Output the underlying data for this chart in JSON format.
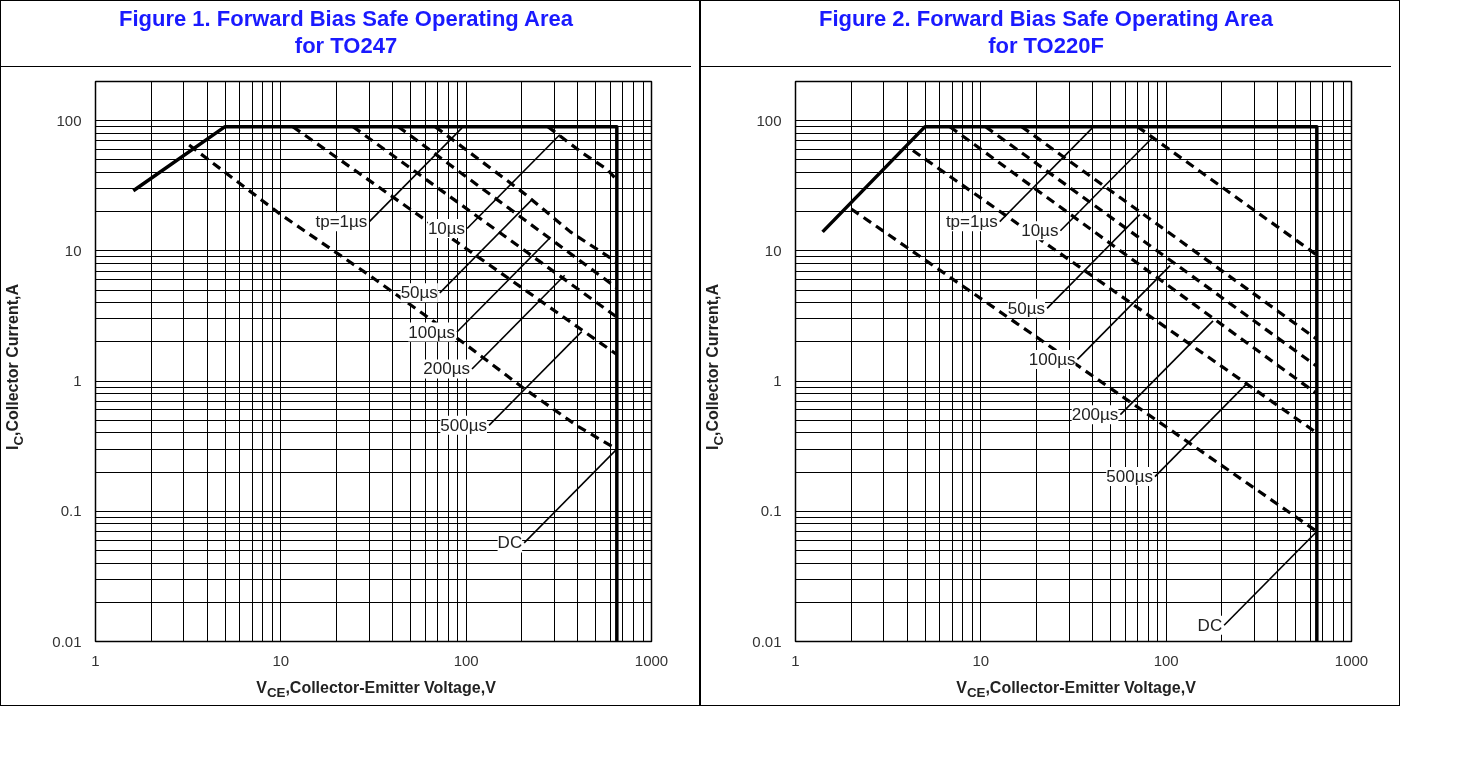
{
  "chart_data": [
    {
      "type": "line",
      "title": "Figure 1. Forward Bias Safe Operating Area\nfor TO247",
      "xlabel": "V$_{CE}$,Collector-Emitter Voltage,V",
      "ylabel": "I$_{C}$,Collector Current,A",
      "log": "xy",
      "grid": true,
      "xlim": [
        1,
        1000
      ],
      "ylim": [
        0.01,
        200
      ],
      "xticks": [
        1,
        10,
        100,
        1000
      ],
      "yticks": [
        0.01,
        0.1,
        1,
        10,
        100
      ],
      "series": [
        {
          "color": "#000000",
          "line_style": "solid",
          "x": [
            1.6,
            5,
            650,
            650
          ],
          "values": [
            29,
            90,
            90,
            0.01
          ]
        },
        {
          "color": "#000000",
          "line_style": "dashed",
          "x": [
            276,
            420,
            580,
            650
          ],
          "values": [
            90,
            57,
            42,
            35
          ]
        },
        {
          "color": "#000000",
          "line_style": "dashed",
          "x": [
            68,
            165,
            210,
            365,
            650
          ],
          "values": [
            90,
            35,
            27,
            14,
            8.2
          ]
        },
        {
          "color": "#000000",
          "line_style": "dashed",
          "x": [
            43,
            650
          ],
          "values": [
            90,
            5.2
          ]
        },
        {
          "color": "#000000",
          "line_style": "dashed",
          "x": [
            24.5,
            650
          ],
          "values": [
            90,
            3.1
          ]
        },
        {
          "color": "#000000",
          "line_style": "dashed",
          "x": [
            11.6,
            650
          ],
          "values": [
            90,
            1.6
          ]
        },
        {
          "color": "#000000",
          "line_style": "dashed",
          "x": [
            3.2,
            10,
            30,
            100,
            200,
            400,
            650
          ],
          "values": [
            65,
            19,
            6.5,
            1.9,
            0.9,
            0.45,
            0.3
          ]
        }
      ],
      "annotations": [
        {
          "text": "tp=1µs",
          "x": 95,
          "y": 88
        },
        {
          "text": "10µs",
          "x": 320,
          "y": 78
        },
        {
          "text": "50µs",
          "x": 228,
          "y": 25
        },
        {
          "text": "100µs",
          "x": 282,
          "y": 12.5
        },
        {
          "text": "200µs",
          "x": 340,
          "y": 6.5
        },
        {
          "text": "500µs",
          "x": 420,
          "y": 2.4
        },
        {
          "text": "DC",
          "x": 650,
          "y": 0.3
        }
      ]
    },
    {
      "type": "line",
      "title": "Figure 2. Forward Bias Safe Operating Area\nfor TO220F",
      "xlabel": "V$_{CE}$,Collector-Emitter Voltage,V",
      "ylabel": "I$_{C}$,Collector Current,A",
      "log": "xy",
      "grid": true,
      "xlim": [
        1,
        1000
      ],
      "ylim": [
        0.01,
        200
      ],
      "xticks": [
        1,
        10,
        100,
        1000
      ],
      "yticks": [
        0.01,
        0.1,
        1,
        10,
        100
      ],
      "series": [
        {
          "color": "#000000",
          "line_style": "solid",
          "x": [
            1.4,
            5,
            650,
            650
          ],
          "values": [
            14,
            90,
            90,
            0.01
          ]
        },
        {
          "color": "#000000",
          "line_style": "dashed",
          "x": [
            70,
            650
          ],
          "values": [
            90,
            9.3
          ]
        },
        {
          "color": "#000000",
          "line_style": "dashed",
          "x": [
            16.6,
            650
          ],
          "values": [
            90,
            2.1
          ]
        },
        {
          "color": "#000000",
          "line_style": "dashed",
          "x": [
            10.6,
            650
          ],
          "values": [
            90,
            1.3
          ]
        },
        {
          "color": "#000000",
          "line_style": "dashed",
          "x": [
            6.8,
            650
          ],
          "values": [
            90,
            0.8
          ]
        },
        {
          "color": "#000000",
          "line_style": "dashed",
          "x": [
            4.3,
            650
          ],
          "values": [
            59,
            0.4
          ]
        },
        {
          "color": "#000000",
          "line_style": "dashed",
          "x": [
            2,
            32,
            650
          ],
          "values": [
            21,
            1.37,
            0.07
          ]
        }
      ],
      "annotations": [
        {
          "text": "tp=1µs",
          "x": 40,
          "y": 88
        },
        {
          "text": "10µs",
          "x": 85,
          "y": 75
        },
        {
          "text": "50µs",
          "x": 72,
          "y": 19
        },
        {
          "text": "100µs",
          "x": 105,
          "y": 7.7
        },
        {
          "text": "200µs",
          "x": 179,
          "y": 2.9
        },
        {
          "text": "500µs",
          "x": 275,
          "y": 0.97
        },
        {
          "text": "DC",
          "x": 650,
          "y": 0.07
        }
      ]
    }
  ]
}
